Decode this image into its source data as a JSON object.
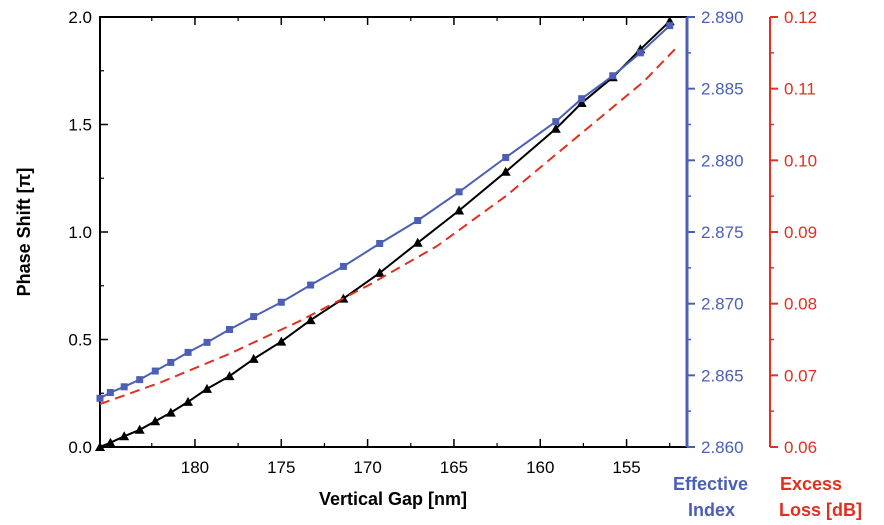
{
  "chart_data": {
    "type": "line",
    "title": "",
    "xlabel": "Vertical Gap [nm]",
    "ylabel": "Phase Shift [π]",
    "y2label": [
      "Effective",
      "Index"
    ],
    "y3label": [
      "Excess",
      "Loss [dB]"
    ],
    "xlim": [
      185.5,
      151.5
    ],
    "ylim": [
      0.0,
      2.0
    ],
    "y2lim": [
      2.86,
      2.89
    ],
    "y3lim": [
      0.06,
      0.12
    ],
    "x_ticks": [
      "180",
      "175",
      "170",
      "165",
      "160",
      "155"
    ],
    "y_ticks": [
      "0.0",
      "0.5",
      "1.0",
      "1.5",
      "2.0"
    ],
    "y2_ticks": [
      "2.860",
      "2.865",
      "2.870",
      "2.875",
      "2.880",
      "2.885",
      "2.890"
    ],
    "y3_ticks": [
      "0.06",
      "0.07",
      "0.08",
      "0.09",
      "0.10",
      "0.11",
      "0.12"
    ],
    "colors": {
      "phase": "#000000",
      "index": "#4a5fb5",
      "loss": "#e03020"
    },
    "series": [
      {
        "axis": "left",
        "marker": "triangle",
        "x": [
          185.5,
          184.9,
          184.1,
          183.2,
          182.3,
          181.4,
          180.4,
          179.3,
          178.0,
          176.6,
          175.0,
          173.3,
          171.4,
          169.3,
          167.1,
          164.7,
          162.0,
          159.1,
          157.6,
          155.8,
          154.2,
          152.5
        ],
        "values": [
          0.0,
          0.02,
          0.05,
          0.08,
          0.12,
          0.16,
          0.21,
          0.27,
          0.33,
          0.41,
          0.49,
          0.59,
          0.69,
          0.81,
          0.95,
          1.1,
          1.28,
          1.48,
          1.6,
          1.72,
          1.85,
          1.98
        ]
      },
      {
        "axis": "right1",
        "marker": "square",
        "x": [
          185.5,
          184.9,
          184.1,
          183.2,
          182.3,
          181.4,
          180.4,
          179.3,
          178.0,
          176.6,
          175.0,
          173.3,
          171.4,
          169.3,
          167.1,
          164.7,
          162.0,
          159.1,
          157.6,
          155.8,
          154.2,
          152.5
        ],
        "values": [
          2.8634,
          2.8638,
          2.8642,
          2.8647,
          2.8653,
          2.8659,
          2.8666,
          2.8673,
          2.8682,
          2.8691,
          2.8701,
          2.8713,
          2.8726,
          2.8742,
          2.8758,
          2.8778,
          2.8802,
          2.8827,
          2.8843,
          2.8859,
          2.8875,
          2.8894
        ]
      },
      {
        "axis": "right2",
        "marker": "none",
        "dashed": true,
        "x": [
          185.5,
          182.0,
          178.0,
          174.0,
          170.0,
          166.0,
          162.0,
          158.0,
          154.0,
          152.0
        ],
        "values": [
          0.066,
          0.069,
          0.073,
          0.0775,
          0.0825,
          0.088,
          0.095,
          0.103,
          0.111,
          0.116
        ]
      }
    ]
  }
}
